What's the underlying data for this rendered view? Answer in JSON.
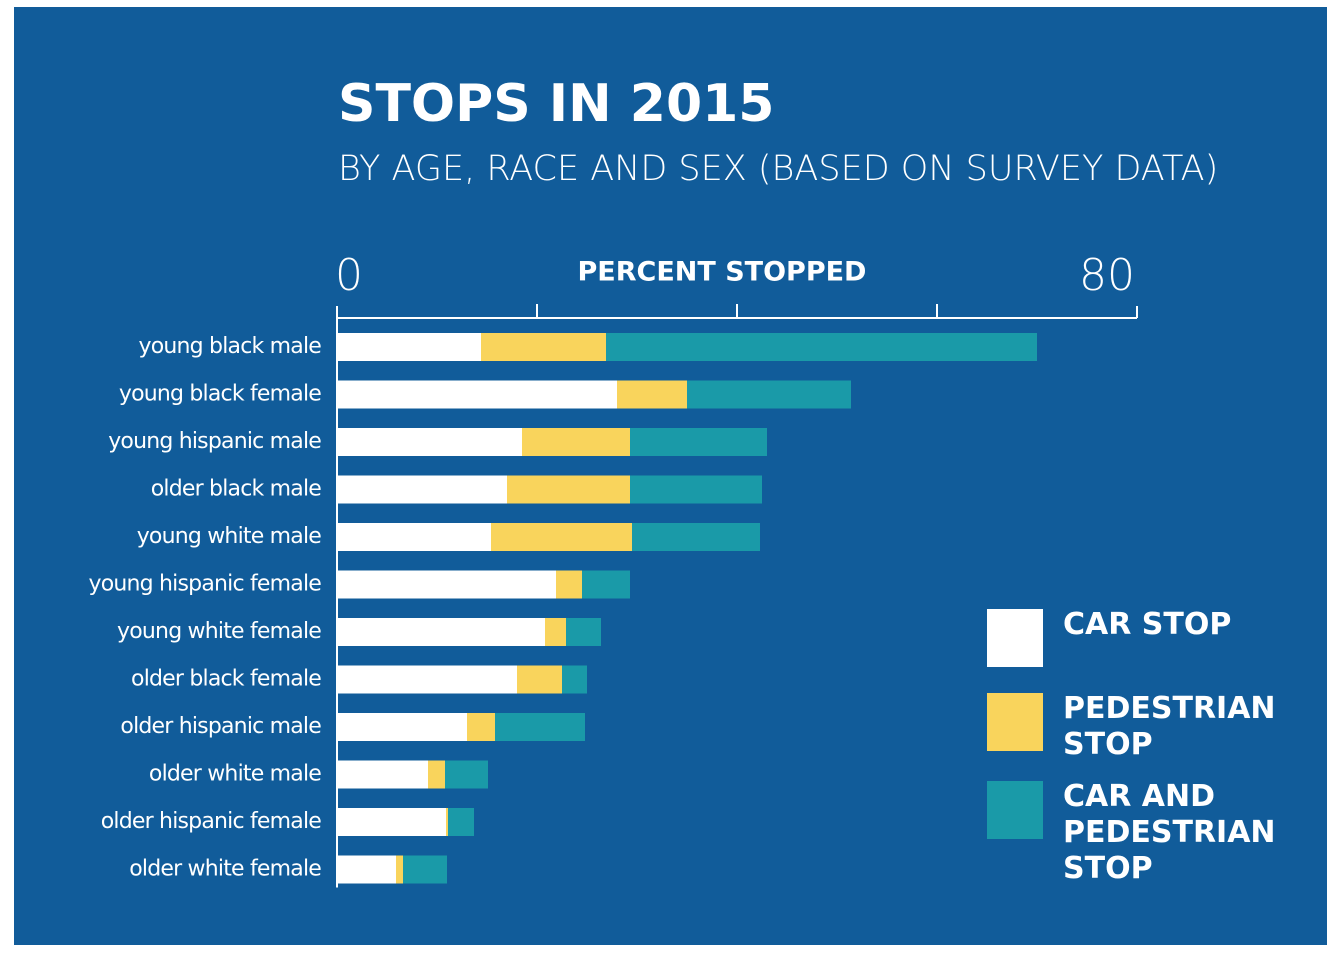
{
  "chart_data": {
    "type": "stacked_barh",
    "title": "STOPS IN 2015",
    "subtitle": "BY AGE, RACE AND SEX (BASED ON SURVEY DATA)",
    "x_label": "PERCENT STOPPED",
    "categories": [
      "young black male",
      "young black female",
      "young hispanic male",
      "older black male",
      "young white male",
      "young hispanic female",
      "young white female",
      "older black female",
      "older hispanic male",
      "older white male",
      "older hispanic female",
      "older white female"
    ],
    "series": [
      {
        "name": "CAR STOP",
        "color": "#ffffff",
        "values": [
          14.4,
          28.0,
          18.5,
          17.0,
          15.4,
          21.9,
          20.8,
          18.0,
          13.0,
          9.1,
          10.9,
          5.9
        ]
      },
      {
        "name": "PEDESTRIAN STOP",
        "color": "#f9d45c",
        "values": [
          12.5,
          7.0,
          10.8,
          12.3,
          14.1,
          2.6,
          2.1,
          4.5,
          2.8,
          1.7,
          0.2,
          0.7
        ]
      },
      {
        "name": "CAR AND PEDESTRIAN STOP",
        "color": "#1a9aa8",
        "values": [
          43.1,
          16.4,
          13.7,
          13.2,
          12.8,
          4.8,
          3.5,
          2.5,
          9.0,
          4.3,
          2.6,
          4.4
        ]
      }
    ],
    "xlim": [
      0,
      80
    ],
    "xticks": [
      0,
      80
    ],
    "minor_xticks": [
      20,
      40,
      60
    ],
    "legend": "lower right"
  }
}
